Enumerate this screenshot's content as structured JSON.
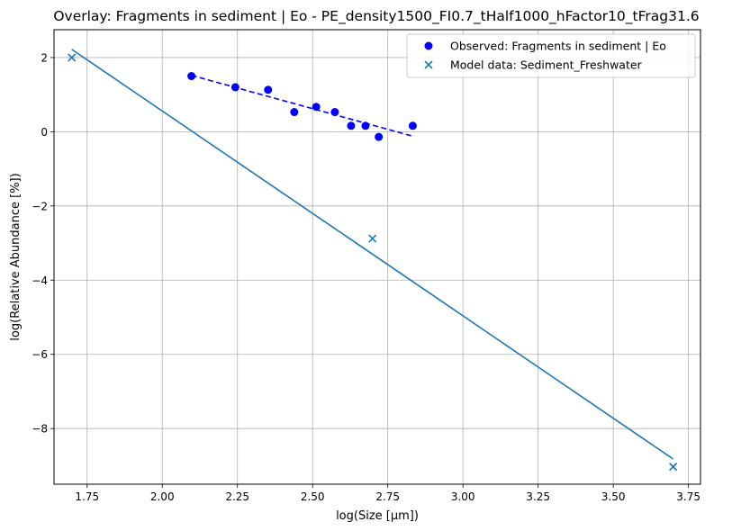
{
  "chart_data": {
    "type": "scatter",
    "title": "Overlay: Fragments in sediment | Eo - PE_density1500_FI0.7_tHalf1000_hFactor10_tFrag31.6",
    "xlabel": "log(Size [µm])",
    "ylabel": "log(Relative Abundance [%])",
    "xlim": [
      1.64,
      3.79
    ],
    "ylim": [
      -9.5,
      2.75
    ],
    "xticks": [
      1.75,
      2.0,
      2.25,
      2.5,
      2.75,
      3.0,
      3.25,
      3.5,
      3.75
    ],
    "xtick_labels": [
      "1.75",
      "2.00",
      "2.25",
      "2.50",
      "2.75",
      "3.00",
      "3.25",
      "3.50",
      "3.75"
    ],
    "yticks": [
      -8,
      -6,
      -4,
      -2,
      0,
      2
    ],
    "ytick_labels": [
      "−8",
      "−6",
      "−4",
      "−2",
      "0",
      "2"
    ],
    "grid": true,
    "legend_position": "top-right",
    "series": [
      {
        "name": "Observed: Fragments in sediment | Eo",
        "kind": "scatter",
        "marker": "circle",
        "color": "#0000ff",
        "x": [
          2.097,
          2.243,
          2.352,
          2.439,
          2.512,
          2.574,
          2.628,
          2.676,
          2.72,
          2.833
        ],
        "y": [
          1.5,
          1.2,
          1.13,
          0.53,
          0.67,
          0.53,
          0.16,
          0.16,
          -0.14,
          0.16
        ]
      },
      {
        "name": "",
        "kind": "line",
        "style": "dashed",
        "color": "#0000ff",
        "x": [
          2.097,
          2.833
        ],
        "y": [
          1.52,
          -0.12
        ]
      },
      {
        "name": "Model data: Sediment_Freshwater",
        "kind": "scatter",
        "marker": "x",
        "color": "#1f77b4",
        "x": [
          1.699,
          2.699,
          3.699
        ],
        "y": [
          2.0,
          -2.88,
          -9.03
        ]
      },
      {
        "name": "",
        "kind": "line",
        "style": "solid",
        "color": "#1f77b4",
        "x": [
          1.699,
          3.699
        ],
        "y": [
          2.22,
          -8.82
        ]
      }
    ]
  }
}
